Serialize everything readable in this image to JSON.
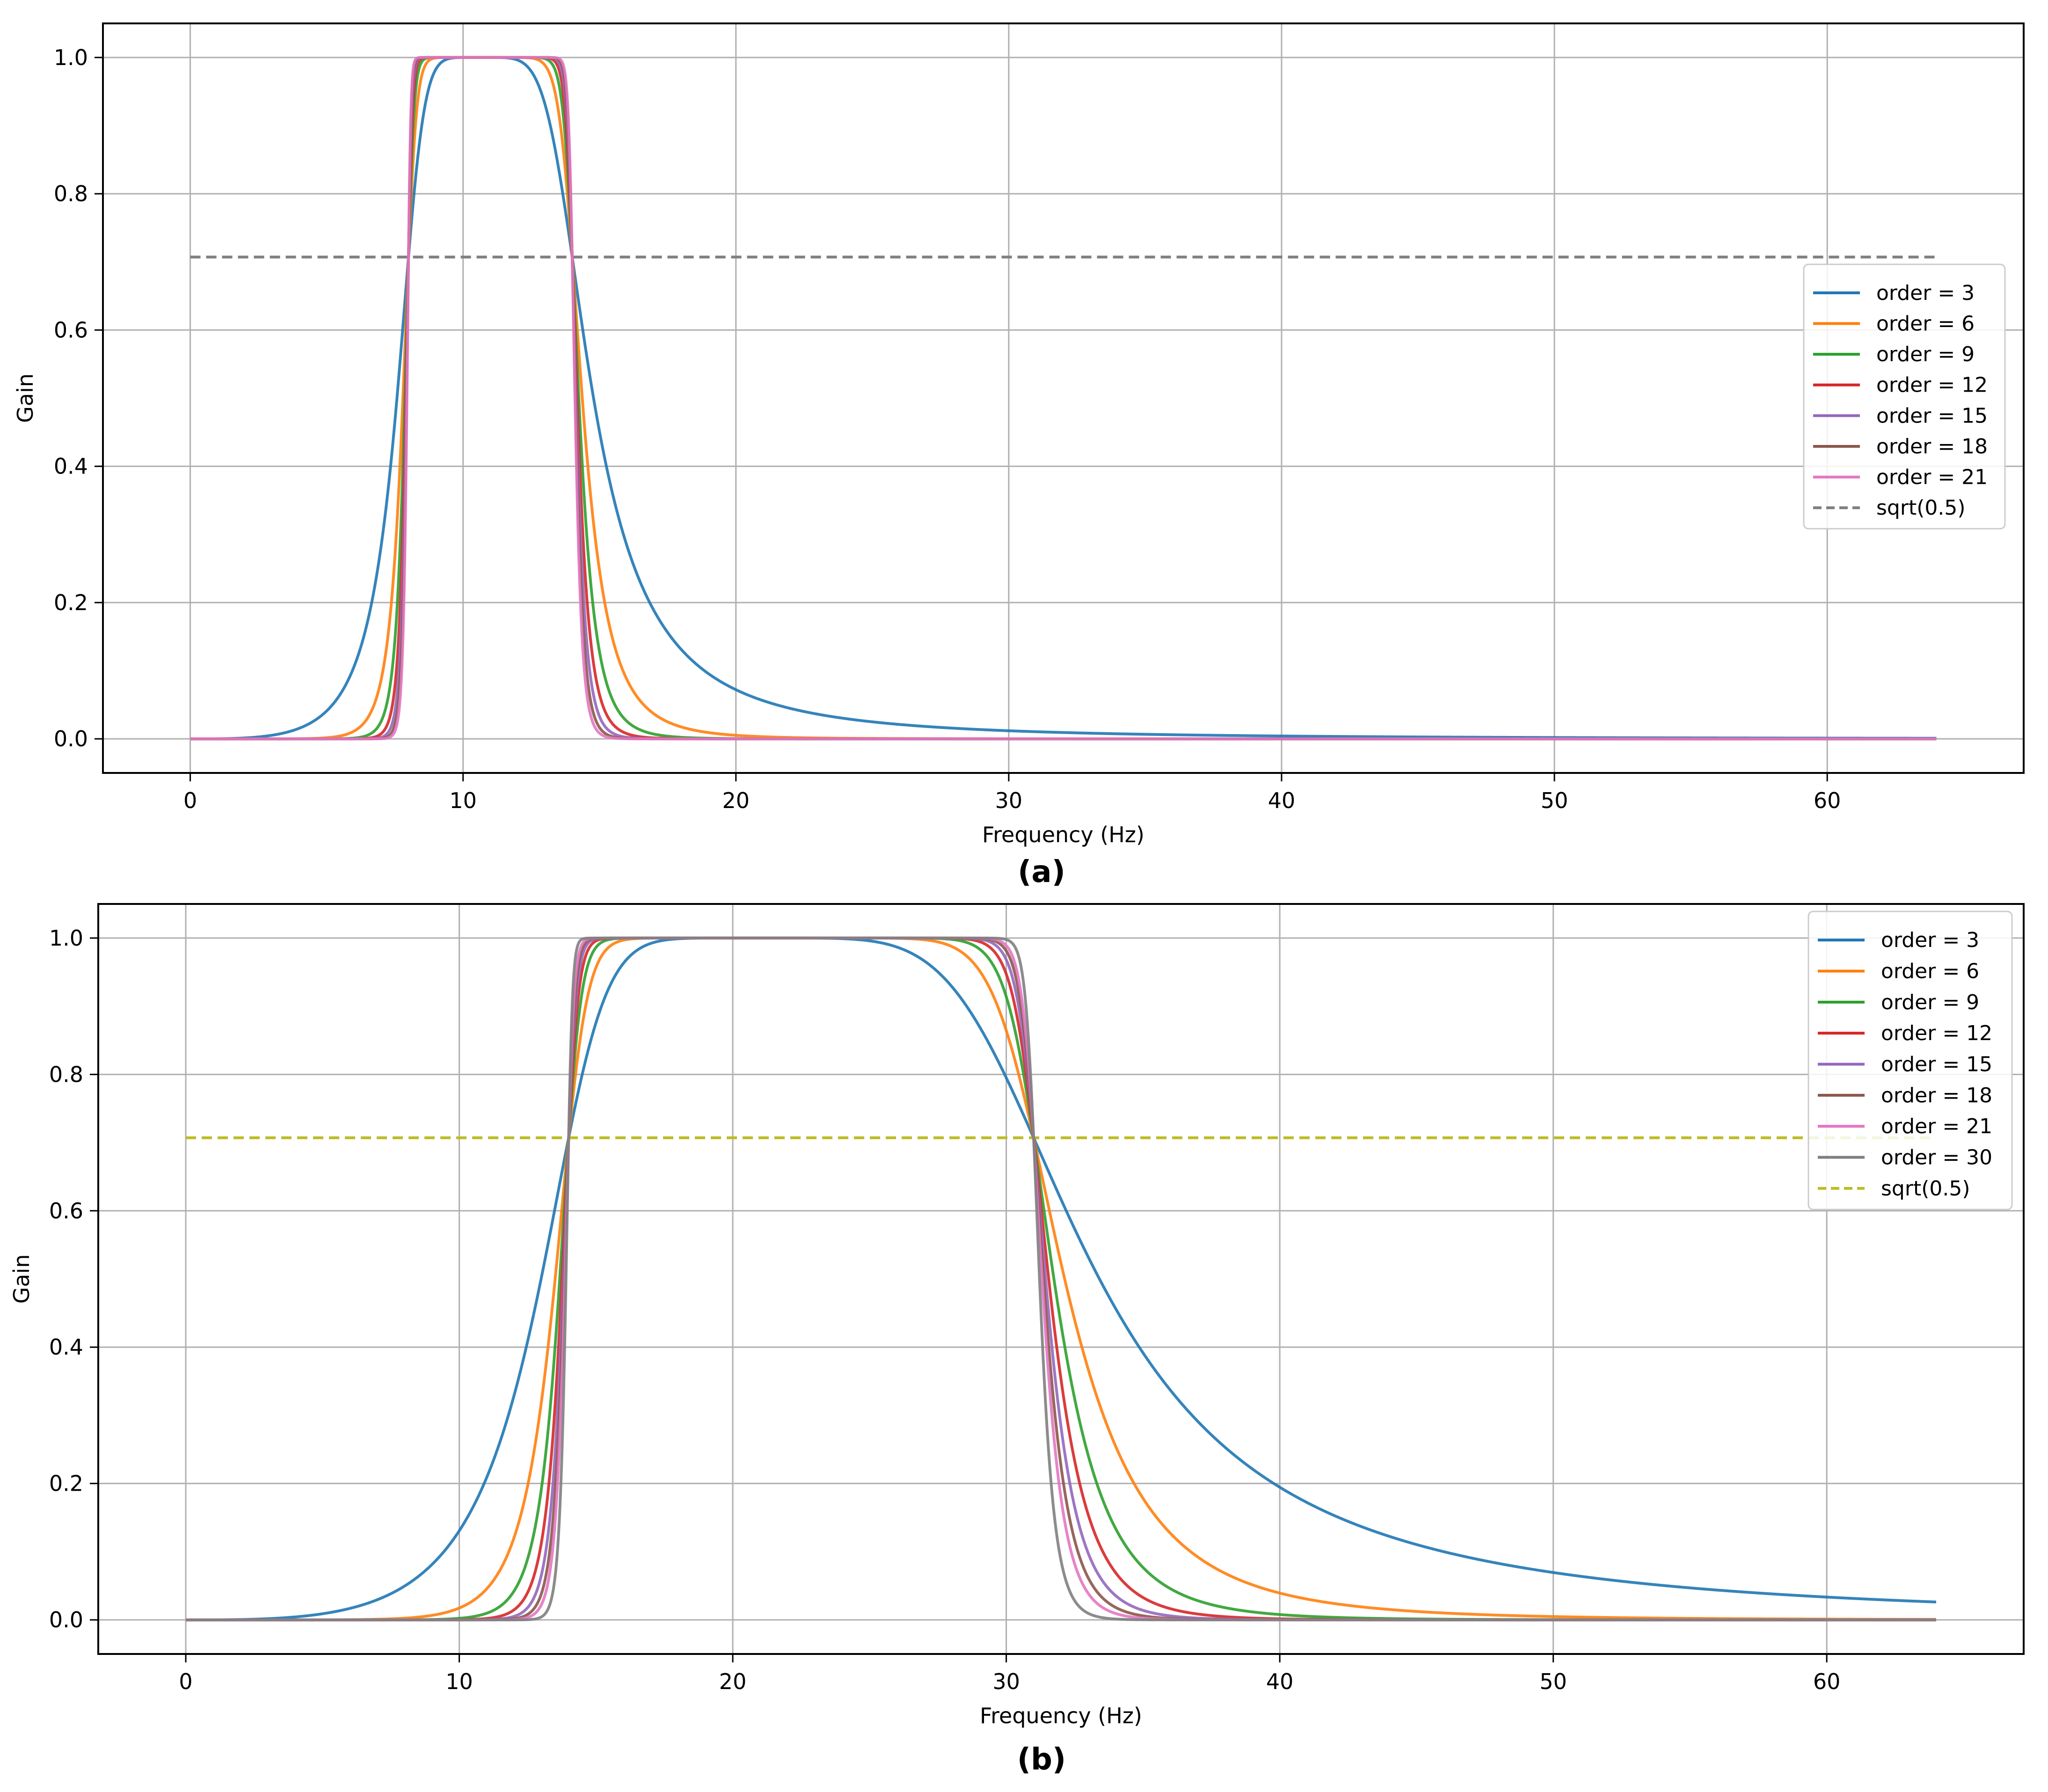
{
  "figure": {
    "labels": [
      "(a)",
      "(b)"
    ]
  },
  "chart_data": [
    {
      "type": "line",
      "panel": "(a)",
      "title": "",
      "xlabel": "Frequency (Hz)",
      "ylabel": "Gain",
      "xlim": [
        -3.2,
        67.2
      ],
      "ylim": [
        -0.05,
        1.05
      ],
      "xticks": [
        0,
        10,
        20,
        30,
        40,
        50,
        60
      ],
      "yticks": [
        0.0,
        0.2,
        0.4,
        0.6,
        0.8,
        1.0
      ],
      "xtick_labels": [
        "0",
        "10",
        "20",
        "30",
        "40",
        "50",
        "60"
      ],
      "ytick_labels": [
        "0.0",
        "0.2",
        "0.4",
        "0.6",
        "0.8",
        "1.0"
      ],
      "grid": true,
      "legend_position": "right",
      "filter": {
        "type": "butterworth-bandpass",
        "low_cutoff_hz": 8,
        "high_cutoff_hz": 14,
        "freq_range_hz": [
          0,
          64
        ]
      },
      "series": [
        {
          "name": "order = 3",
          "order": 3,
          "color": "#1f77b4"
        },
        {
          "name": "order = 6",
          "order": 6,
          "color": "#ff7f0e"
        },
        {
          "name": "order = 9",
          "order": 9,
          "color": "#2ca02c"
        },
        {
          "name": "order = 12",
          "order": 12,
          "color": "#d62728"
        },
        {
          "name": "order = 15",
          "order": 15,
          "color": "#9467bd"
        },
        {
          "name": "order = 18",
          "order": 18,
          "color": "#8c564b"
        },
        {
          "name": "order = 21",
          "order": 21,
          "color": "#e377c2"
        }
      ],
      "reference": {
        "name": "sqrt(0.5)",
        "value": 0.7071,
        "x_range": [
          0,
          64
        ],
        "color": "#7f7f7f",
        "style": "dashed"
      }
    },
    {
      "type": "line",
      "panel": "(b)",
      "title": "",
      "xlabel": "Frequency (Hz)",
      "ylabel": "Gain",
      "xlim": [
        -3.2,
        67.2
      ],
      "ylim": [
        -0.05,
        1.05
      ],
      "xticks": [
        0,
        10,
        20,
        30,
        40,
        50,
        60
      ],
      "yticks": [
        0.0,
        0.2,
        0.4,
        0.6,
        0.8,
        1.0
      ],
      "xtick_labels": [
        "0",
        "10",
        "20",
        "30",
        "40",
        "50",
        "60"
      ],
      "ytick_labels": [
        "0.0",
        "0.2",
        "0.4",
        "0.6",
        "0.8",
        "1.0"
      ],
      "grid": true,
      "legend_position": "upper right",
      "filter": {
        "type": "butterworth-bandpass",
        "low_cutoff_hz": 14,
        "high_cutoff_hz": 31,
        "freq_range_hz": [
          0,
          64
        ]
      },
      "series": [
        {
          "name": "order = 3",
          "order": 3,
          "color": "#1f77b4"
        },
        {
          "name": "order = 6",
          "order": 6,
          "color": "#ff7f0e"
        },
        {
          "name": "order = 9",
          "order": 9,
          "color": "#2ca02c"
        },
        {
          "name": "order = 12",
          "order": 12,
          "color": "#d62728"
        },
        {
          "name": "order = 15",
          "order": 15,
          "color": "#9467bd"
        },
        {
          "name": "order = 18",
          "order": 18,
          "color": "#8c564b"
        },
        {
          "name": "order = 21",
          "order": 21,
          "color": "#e377c2"
        },
        {
          "name": "order = 30",
          "order": 30,
          "color": "#7f7f7f"
        }
      ],
      "reference": {
        "name": "sqrt(0.5)",
        "value": 0.7071,
        "x_range": [
          0,
          64
        ],
        "color": "#bcbd22",
        "style": "dashed"
      }
    }
  ]
}
